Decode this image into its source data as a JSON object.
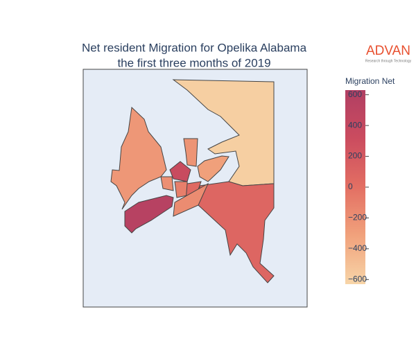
{
  "chart_data": {
    "type": "choropleth",
    "title": "Net resident Migration for Opelika Alabama",
    "subtitle": "the first three months of 2019",
    "logo": "ADVAN",
    "logo_tagline": "Research through Technology",
    "colorbar_title": "Migration Net",
    "values": [
      -590,
      80,
      -250,
      560,
      350,
      -230,
      -300,
      -200,
      -100,
      50,
      -180
    ],
    "zlim": [
      -630,
      630
    ],
    "zticks": [
      600,
      400,
      200,
      0,
      {
        "value": -200,
        "label": "−200"
      },
      {
        "value": -400,
        "label": "−400"
      },
      {
        "value": -600,
        "label": "−600"
      }
    ],
    "colorscale": [
      "#f7d5a8",
      "#f1a27c",
      "#e36f63",
      "#cb4c5f",
      "#b13f63"
    ]
  }
}
